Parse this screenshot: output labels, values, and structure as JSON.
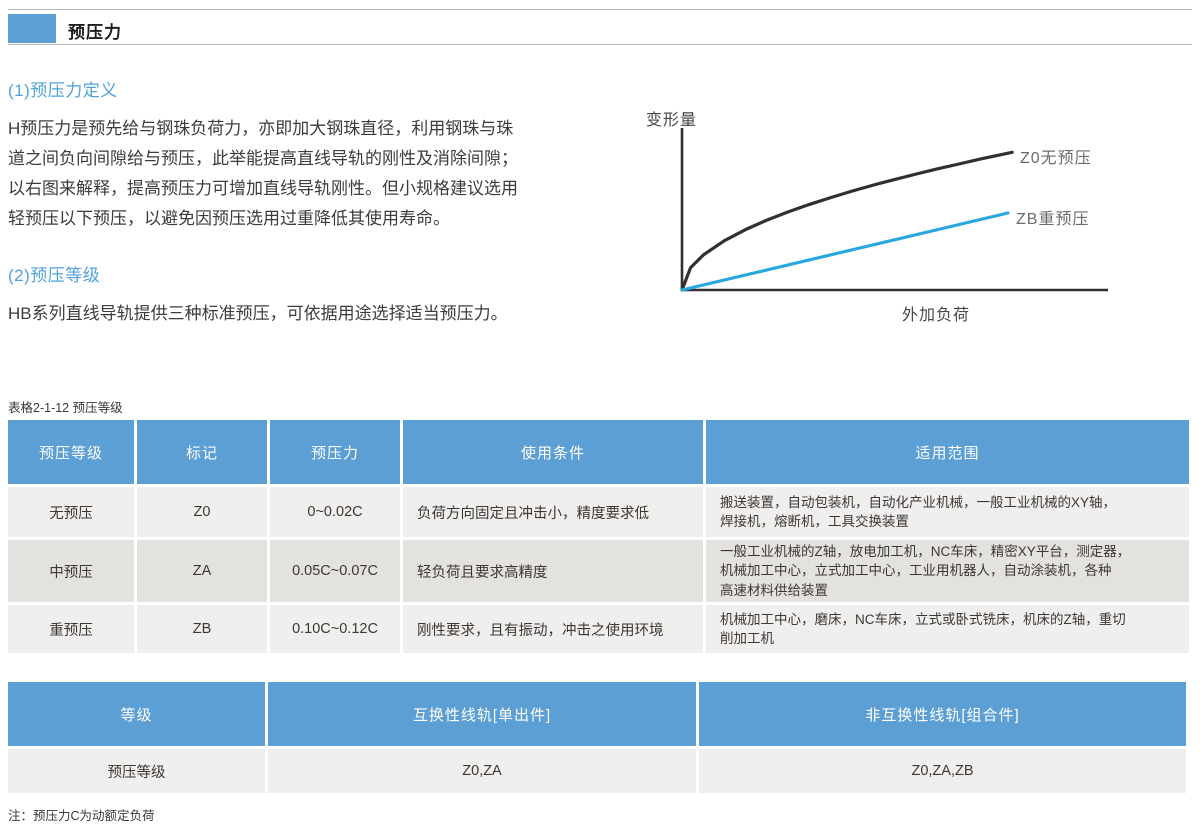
{
  "page": {
    "title": "预压力"
  },
  "sections": [
    {
      "heading": "(1)预压力定义",
      "body_lines": [
        "H预压力是预先给与钢珠负荷力，亦即加大钢珠直径，利用钢珠与珠",
        "道之间负向间隙给与预压，此举能提高直线导轨的刚性及消除间隙；",
        "以右图来解释，提高预压力可增加直线导轨刚性。但小规格建议选用",
        "轻预压以下预压，以避免因预压选用过重降低其使用寿命。"
      ]
    },
    {
      "heading": "(2)预压等级",
      "body_lines": [
        "HB系列直线导轨提供三种标准预压，可依据用途选择适当预压力。"
      ]
    }
  ],
  "chart_data": {
    "type": "line",
    "title": "",
    "xlabel": "外加负荷",
    "ylabel": "变形量",
    "x_range": [
      0,
      1
    ],
    "y_range": [
      0,
      1
    ],
    "grid": false,
    "ticks": "none (conceptual diagram, unlabeled axes)",
    "legend_position": "labels at right end of each line",
    "series": [
      {
        "name": "Z0无预压",
        "color": "#332f30",
        "style": "concave saturating curve (large deformation under load)",
        "x": [
          0,
          0.02,
          0.05,
          0.1,
          0.15,
          0.2,
          0.25,
          0.3,
          0.35,
          0.4,
          0.45,
          0.5,
          0.55,
          0.6,
          0.65,
          0.7,
          0.775
        ],
        "y": [
          0,
          0.137,
          0.216,
          0.305,
          0.374,
          0.432,
          0.483,
          0.529,
          0.571,
          0.611,
          0.648,
          0.683,
          0.716,
          0.748,
          0.778,
          0.808,
          0.85
        ]
      },
      {
        "name": "ZB重预压",
        "color": "#29a8e0",
        "style": "straight line (higher rigidity, less deformation)",
        "x": [
          0,
          0.765
        ],
        "y": [
          0,
          0.475
        ]
      }
    ]
  },
  "table1": {
    "caption": "表格2-1-12  预压等级",
    "headers": [
      "预压等级",
      "标记",
      "预压力",
      "使用条件",
      "适用范围"
    ],
    "rows": [
      [
        "无预压",
        "Z0",
        "0~0.02C",
        "负荷方向固定且冲击小，精度要求低",
        "搬送装置，自动包装机，自动化产业机械，一般工业机械的XY轴，\n焊接机，熔断机，工具交换装置"
      ],
      [
        "中预压",
        "ZA",
        "0.05C~0.07C",
        "轻负荷且要求高精度",
        "一般工业机械的Z轴，放电加工机，NC车床，精密XY平台，测定器，\n机械加工中心，立式加工中心，工业用机器人，自动涂装机，各种\n高速材料供给装置"
      ],
      [
        "重预压",
        "ZB",
        "0.10C~0.12C",
        "刚性要求，且有振动，冲击之使用环境",
        "机械加工中心，磨床，NC车床，立式或卧式铣床，机床的Z轴，重切\n削加工机"
      ]
    ]
  },
  "table2": {
    "headers": [
      "等级",
      "互换性线轨[单出件]",
      "非互换性线轨[组合件]"
    ],
    "rows": [
      [
        "预压等级",
        "Z0,ZA",
        "Z0,ZA,ZB"
      ]
    ]
  },
  "note": "注：预压力C为动额定负荷",
  "colors": {
    "accent_blue": "#5b9fd4",
    "table_header_bg": "#5b9fd4",
    "row_bg_light": "#f0efed",
    "row_bg_dark": "#e4e2df",
    "heading_text": "#4fa3d9",
    "curve_black": "#332f30",
    "curve_blue": "#29a8e0"
  }
}
